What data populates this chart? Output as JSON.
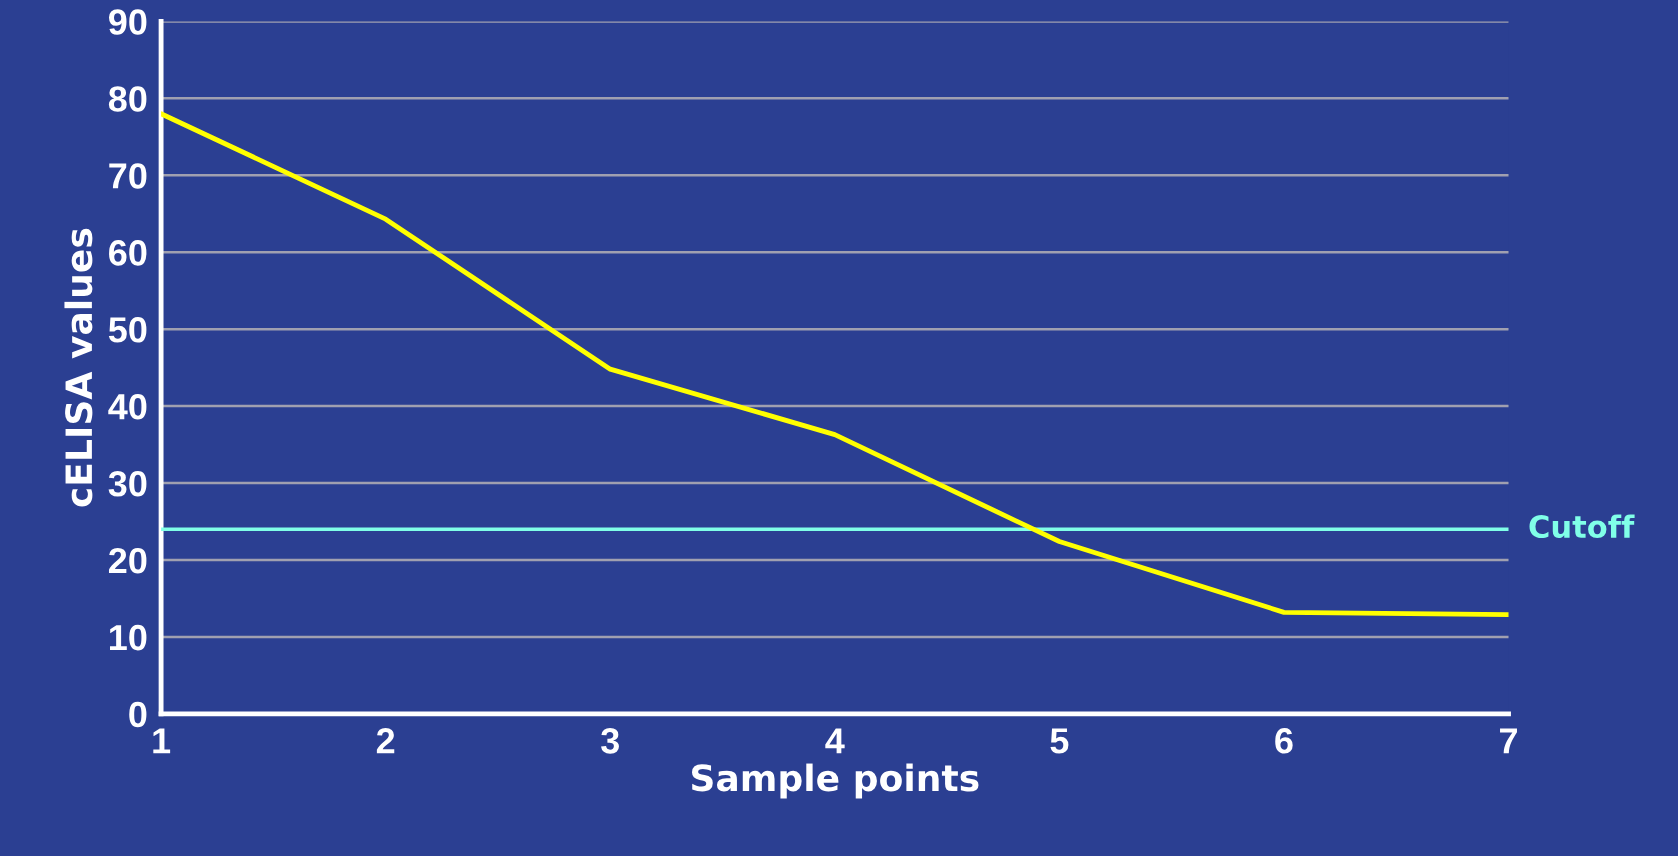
{
  "chart_data": {
    "type": "line",
    "xlabel": "Sample points",
    "ylabel": "cELISA values",
    "x": [
      1,
      2,
      3,
      4,
      5,
      6,
      7
    ],
    "series": [
      {
        "color": "#ffff00",
        "values": [
          78,
          64.3,
          44.8,
          36.3,
          22.4,
          13.2,
          12.9
        ]
      }
    ],
    "xlim": [
      1,
      7
    ],
    "xticks": [
      1,
      2,
      3,
      4,
      5,
      6,
      7
    ],
    "ylim": [
      0,
      90
    ],
    "yticks": [
      0,
      10,
      20,
      30,
      40,
      50,
      60,
      70,
      80,
      90
    ],
    "ref_lines": [
      {
        "axis": "y",
        "value": 24,
        "label": "Cutoff",
        "color": "#80ffe8"
      }
    ],
    "grid": "y",
    "marker": "none",
    "line_style": "solid"
  }
}
